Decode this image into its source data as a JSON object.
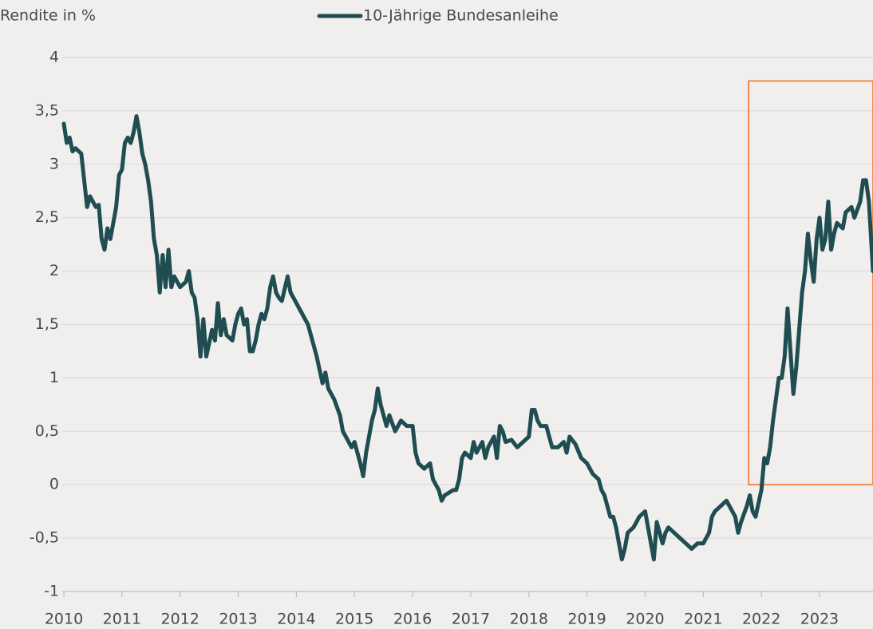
{
  "chart_data": {
    "type": "line",
    "y_label": "Rendite in %",
    "xlim": [
      2010,
      2023.92
    ],
    "ylim": [
      -1,
      4
    ],
    "xticks": [
      2010,
      2011,
      2012,
      2013,
      2014,
      2015,
      2016,
      2017,
      2018,
      2019,
      2020,
      2021,
      2022,
      2023
    ],
    "yticks": [
      -1,
      {
        "value": -0.5,
        "label": "-0,5"
      },
      0,
      {
        "value": 0.5,
        "label": "0,5"
      },
      1,
      {
        "value": 1.5,
        "label": "1,5"
      },
      2,
      {
        "value": 2.5,
        "label": "2,5"
      },
      3,
      {
        "value": 3.5,
        "label": "3,5"
      },
      4
    ],
    "grid": true,
    "legend": "top",
    "highlight": {
      "color": "#f5894a",
      "xlim": [
        2021.78,
        2023.92
      ],
      "ylim": [
        0,
        3.78
      ]
    },
    "x": [
      2010.0,
      2010.05,
      2010.1,
      2010.15,
      2010.2,
      2010.3,
      2010.35,
      2010.4,
      2010.45,
      2010.55,
      2010.6,
      2010.65,
      2010.7,
      2010.75,
      2010.8,
      2010.85,
      2010.9,
      2010.95,
      2011.0,
      2011.05,
      2011.1,
      2011.15,
      2011.2,
      2011.25,
      2011.3,
      2011.35,
      2011.4,
      2011.45,
      2011.5,
      2011.55,
      2011.6,
      2011.65,
      2011.7,
      2011.75,
      2011.8,
      2011.85,
      2011.9,
      2012.0,
      2012.1,
      2012.15,
      2012.2,
      2012.25,
      2012.3,
      2012.35,
      2012.4,
      2012.45,
      2012.55,
      2012.6,
      2012.65,
      2012.7,
      2012.75,
      2012.8,
      2012.9,
      2012.95,
      2013.0,
      2013.05,
      2013.1,
      2013.15,
      2013.2,
      2013.25,
      2013.3,
      2013.35,
      2013.4,
      2013.45,
      2013.5,
      2013.55,
      2013.6,
      2013.65,
      2013.7,
      2013.75,
      2013.85,
      2013.9,
      2014.0,
      2014.1,
      2014.2,
      2014.25,
      2014.3,
      2014.35,
      2014.45,
      2014.5,
      2014.55,
      2014.65,
      2014.75,
      2014.8,
      2014.85,
      2014.95,
      2015.0,
      2015.05,
      2015.1,
      2015.15,
      2015.2,
      2015.3,
      2015.35,
      2015.4,
      2015.45,
      2015.5,
      2015.55,
      2015.6,
      2015.7,
      2015.8,
      2015.9,
      2016.0,
      2016.05,
      2016.1,
      2016.2,
      2016.3,
      2016.35,
      2016.45,
      2016.5,
      2016.55,
      2016.7,
      2016.75,
      2016.8,
      2016.85,
      2016.9,
      2017.0,
      2017.05,
      2017.1,
      2017.2,
      2017.25,
      2017.3,
      2017.4,
      2017.45,
      2017.5,
      2017.55,
      2017.6,
      2017.7,
      2017.8,
      2017.9,
      2018.0,
      2018.05,
      2018.1,
      2018.15,
      2018.2,
      2018.3,
      2018.35,
      2018.4,
      2018.5,
      2018.6,
      2018.65,
      2018.7,
      2018.8,
      2018.9,
      2019.0,
      2019.05,
      2019.1,
      2019.2,
      2019.25,
      2019.3,
      2019.4,
      2019.45,
      2019.5,
      2019.55,
      2019.6,
      2019.65,
      2019.7,
      2019.8,
      2019.85,
      2019.9,
      2020.0,
      2020.05,
      2020.1,
      2020.15,
      2020.2,
      2020.25,
      2020.3,
      2020.35,
      2020.4,
      2020.5,
      2020.6,
      2020.7,
      2020.8,
      2020.9,
      2021.0,
      2021.05,
      2021.1,
      2021.15,
      2021.2,
      2021.3,
      2021.4,
      2021.45,
      2021.55,
      2021.6,
      2021.65,
      2021.75,
      2021.8,
      2021.85,
      2021.9,
      2022.0,
      2022.05,
      2022.1,
      2022.15,
      2022.2,
      2022.3,
      2022.35,
      2022.4,
      2022.45,
      2022.5,
      2022.55,
      2022.6,
      2022.65,
      2022.7,
      2022.75,
      2022.8,
      2022.85,
      2022.9,
      2022.95,
      2023.0,
      2023.05,
      2023.1,
      2023.15,
      2023.2,
      2023.25,
      2023.3,
      2023.4,
      2023.45,
      2023.55,
      2023.6,
      2023.7,
      2023.75,
      2023.8,
      2023.85,
      2023.92
    ],
    "series": [
      {
        "name": "10-Jährige Bundesanleihe",
        "color": "#1f4d51",
        "values": [
          3.38,
          3.2,
          3.25,
          3.12,
          3.15,
          3.1,
          2.85,
          2.6,
          2.7,
          2.6,
          2.62,
          2.3,
          2.2,
          2.4,
          2.3,
          2.45,
          2.6,
          2.9,
          2.95,
          3.2,
          3.25,
          3.2,
          3.3,
          3.45,
          3.3,
          3.1,
          3.0,
          2.85,
          2.65,
          2.3,
          2.15,
          1.8,
          2.15,
          1.85,
          2.2,
          1.85,
          1.95,
          1.85,
          1.9,
          2.0,
          1.8,
          1.75,
          1.55,
          1.2,
          1.55,
          1.2,
          1.45,
          1.35,
          1.7,
          1.4,
          1.55,
          1.4,
          1.35,
          1.5,
          1.6,
          1.65,
          1.5,
          1.55,
          1.25,
          1.25,
          1.35,
          1.5,
          1.6,
          1.55,
          1.65,
          1.85,
          1.95,
          1.8,
          1.75,
          1.72,
          1.95,
          1.8,
          1.7,
          1.6,
          1.5,
          1.4,
          1.3,
          1.2,
          0.95,
          1.05,
          0.9,
          0.8,
          0.65,
          0.5,
          0.45,
          0.35,
          0.4,
          0.3,
          0.2,
          0.08,
          0.3,
          0.6,
          0.7,
          0.9,
          0.75,
          0.65,
          0.55,
          0.65,
          0.5,
          0.6,
          0.55,
          0.55,
          0.3,
          0.2,
          0.15,
          0.2,
          0.05,
          -0.05,
          -0.15,
          -0.1,
          -0.05,
          -0.05,
          0.05,
          0.25,
          0.3,
          0.25,
          0.4,
          0.3,
          0.4,
          0.25,
          0.35,
          0.45,
          0.25,
          0.55,
          0.5,
          0.4,
          0.42,
          0.35,
          0.4,
          0.45,
          0.7,
          0.7,
          0.6,
          0.55,
          0.55,
          0.45,
          0.35,
          0.35,
          0.4,
          0.3,
          0.45,
          0.38,
          0.25,
          0.2,
          0.15,
          0.1,
          0.05,
          -0.05,
          -0.1,
          -0.3,
          -0.3,
          -0.4,
          -0.55,
          -0.7,
          -0.6,
          -0.45,
          -0.4,
          -0.35,
          -0.3,
          -0.25,
          -0.4,
          -0.55,
          -0.7,
          -0.35,
          -0.45,
          -0.55,
          -0.45,
          -0.4,
          -0.45,
          -0.5,
          -0.55,
          -0.6,
          -0.55,
          -0.55,
          -0.5,
          -0.45,
          -0.3,
          -0.25,
          -0.2,
          -0.15,
          -0.2,
          -0.3,
          -0.45,
          -0.35,
          -0.2,
          -0.1,
          -0.25,
          -0.3,
          -0.05,
          0.25,
          0.2,
          0.35,
          0.6,
          1.0,
          1.0,
          1.2,
          1.65,
          1.25,
          0.85,
          1.1,
          1.45,
          1.8,
          2.0,
          2.35,
          2.1,
          1.9,
          2.3,
          2.5,
          2.2,
          2.3,
          2.65,
          2.2,
          2.35,
          2.45,
          2.4,
          2.55,
          2.6,
          2.5,
          2.65,
          2.85,
          2.85,
          2.65,
          2.0
        ]
      }
    ]
  }
}
